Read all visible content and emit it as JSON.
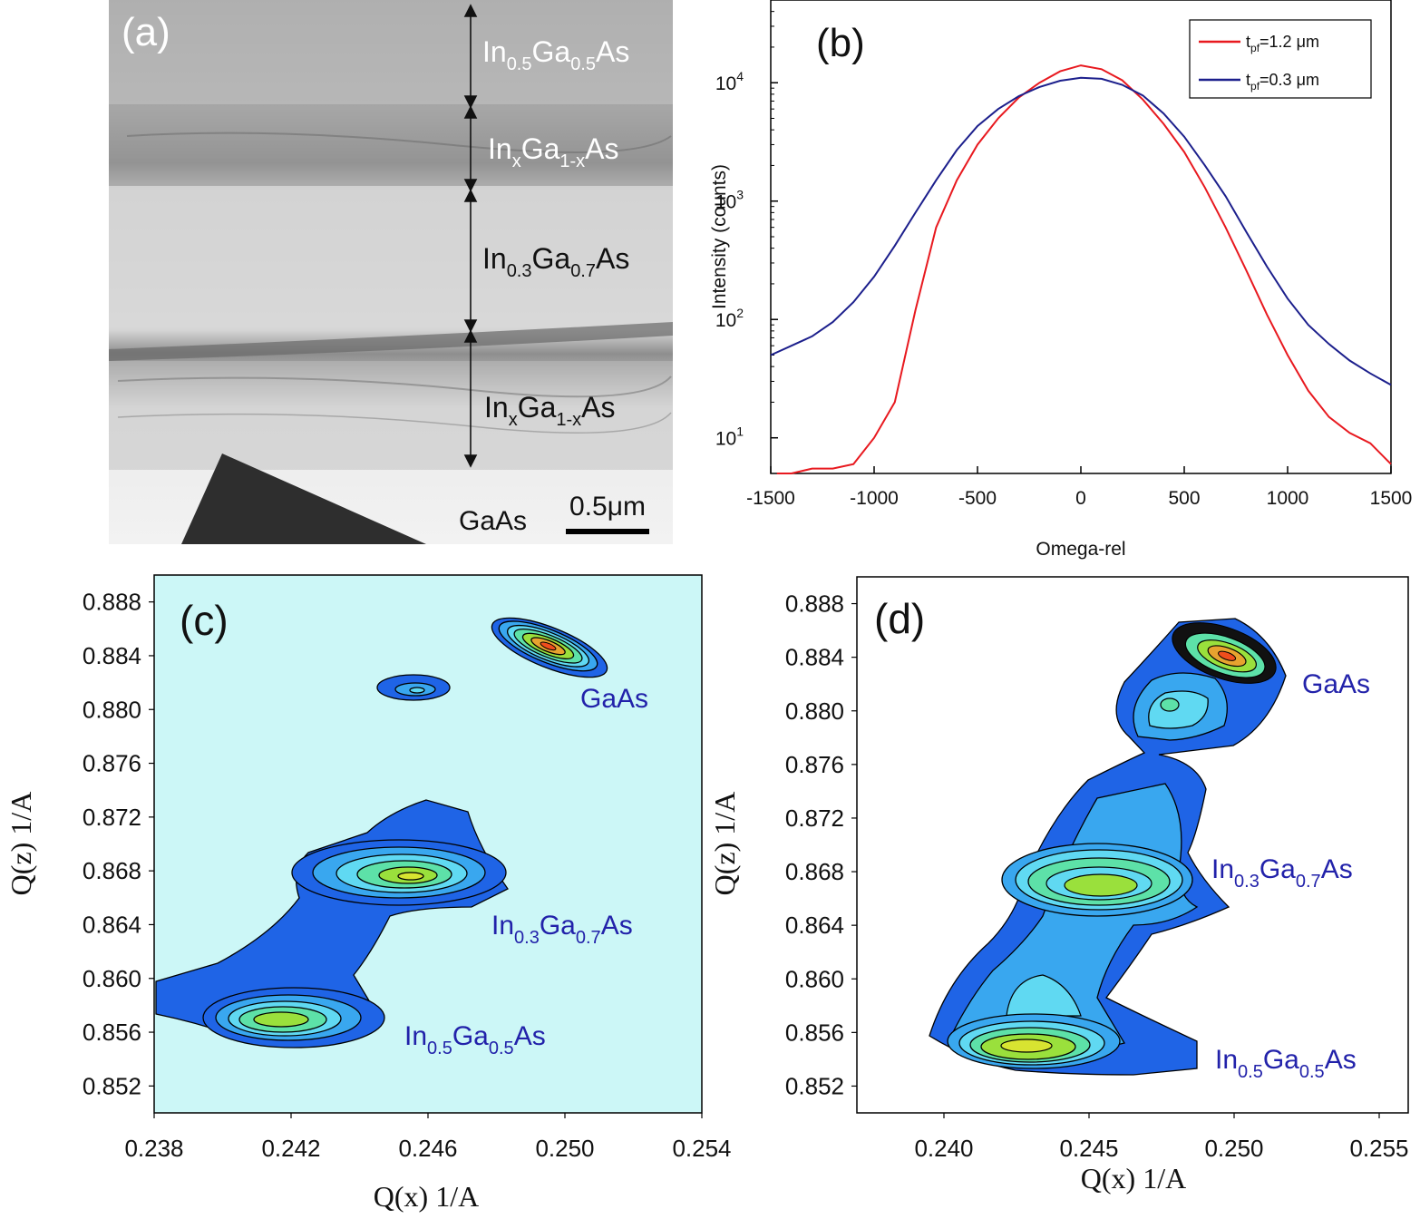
{
  "panels": {
    "a": {
      "label": "(a)",
      "layers": [
        {
          "base": "In",
          "sub1": "0.5",
          "mid": "Ga",
          "sub2": "0.5",
          "end": "As"
        },
        {
          "base": "In",
          "sub1": "x",
          "mid": "Ga",
          "sub2": "1-x",
          "end": "As"
        },
        {
          "base": "In",
          "sub1": "0.3",
          "mid": "Ga",
          "sub2": "0.7",
          "end": "As"
        },
        {
          "base": "In",
          "sub1": "x",
          "mid": "Ga",
          "sub2": "1-x",
          "end": "As"
        }
      ],
      "substrate": "GaAs",
      "scalebar": "0.5μm"
    },
    "b": {
      "label": "(b)",
      "legend": [
        {
          "pre": "t",
          "sub": "pf",
          "post": "=1.2 μm",
          "color": "#e8191f"
        },
        {
          "pre": "t",
          "sub": "pf",
          "post": "=0.3 μm",
          "color": "#1c1f8c"
        }
      ]
    },
    "c": {
      "label": "(c)"
    },
    "d": {
      "label": "(d)"
    }
  },
  "chart_data": [
    {
      "type": "line",
      "panel": "b",
      "xlabel": "Omega-rel",
      "ylabel": "Intensity (counts)",
      "yscale": "log",
      "xlim": [
        -1500,
        1500
      ],
      "ylim": [
        5,
        50000
      ],
      "xticks": [
        "-1500",
        "-1000",
        "-500",
        "0",
        "500",
        "1000",
        "1500"
      ],
      "yticks": [
        {
          "base": "10",
          "exp": "1"
        },
        {
          "base": "10",
          "exp": "2"
        },
        {
          "base": "10",
          "exp": "3"
        },
        {
          "base": "10",
          "exp": "4"
        }
      ],
      "series": [
        {
          "name": "tpf=1.2 μm",
          "x": [
            -1470,
            -1400,
            -1300,
            -1200,
            -1100,
            -1000,
            -900,
            -800,
            -700,
            -600,
            -500,
            -400,
            -300,
            -200,
            -100,
            0,
            100,
            200,
            300,
            400,
            500,
            600,
            700,
            800,
            900,
            1000,
            1100,
            1200,
            1300,
            1400,
            1500
          ],
          "y": [
            5,
            5,
            5.5,
            5.5,
            6,
            10,
            20,
            120,
            600,
            1500,
            3000,
            5000,
            7500,
            10000,
            12500,
            14000,
            13000,
            10500,
            7200,
            4500,
            2600,
            1300,
            600,
            260,
            110,
            50,
            25,
            15,
            11,
            9,
            6
          ]
        },
        {
          "name": "tpf=0.3 μm",
          "x": [
            -1500,
            -1400,
            -1300,
            -1200,
            -1100,
            -1000,
            -900,
            -800,
            -700,
            -600,
            -500,
            -400,
            -300,
            -200,
            -100,
            0,
            100,
            200,
            300,
            400,
            500,
            600,
            700,
            800,
            900,
            1000,
            1100,
            1200,
            1300,
            1400,
            1500
          ],
          "y": [
            50,
            60,
            72,
            95,
            140,
            230,
            420,
            800,
            1500,
            2700,
            4300,
            6000,
            7700,
            9200,
            10400,
            11000,
            10800,
            9600,
            7800,
            5500,
            3500,
            2000,
            1100,
            550,
            280,
            150,
            90,
            62,
            45,
            35,
            28
          ]
        }
      ]
    },
    {
      "type": "heatmap",
      "panel": "c",
      "xlabel": "Q(x) 1/A",
      "ylabel": "Q(z) 1/A",
      "xlim": [
        0.238,
        0.254
      ],
      "ylim": [
        0.85,
        0.89
      ],
      "xticks": [
        "0.238",
        "0.242",
        "0.246",
        "0.250",
        "0.254"
      ],
      "yticks": [
        "0.852",
        "0.856",
        "0.860",
        "0.864",
        "0.868",
        "0.872",
        "0.876",
        "0.880",
        "0.884",
        "0.888"
      ],
      "peaks": [
        {
          "label": {
            "pre": "",
            "s1": "",
            "mid": "GaAs",
            "s2": "",
            "post": ""
          },
          "qx": 0.2502,
          "qz": 0.8843
        },
        {
          "label": {
            "pre": "In",
            "s1": "0.3",
            "mid": "Ga",
            "s2": "0.7",
            "post": "As"
          },
          "qx": 0.2458,
          "qz": 0.8671
        },
        {
          "label": {
            "pre": "In",
            "s1": "0.5",
            "mid": "Ga",
            "s2": "0.5",
            "post": "As"
          },
          "qx": 0.2418,
          "qz": 0.8561
        },
        {
          "label": null,
          "qx": 0.246,
          "qz": 0.8812
        }
      ]
    },
    {
      "type": "heatmap",
      "panel": "d",
      "xlabel": "Q(x) 1/A",
      "ylabel": "Q(z) 1/A",
      "xlim": [
        0.237,
        0.256
      ],
      "ylim": [
        0.85,
        0.89
      ],
      "xticks": [
        "0.240",
        "0.245",
        "0.250",
        "0.255"
      ],
      "yticks": [
        "0.852",
        "0.856",
        "0.860",
        "0.864",
        "0.868",
        "0.872",
        "0.876",
        "0.880",
        "0.884",
        "0.888"
      ],
      "peaks": [
        {
          "label": {
            "pre": "",
            "s1": "",
            "mid": "GaAs",
            "s2": "",
            "post": ""
          },
          "qx": 0.2506,
          "qz": 0.884
        },
        {
          "label": {
            "pre": "In",
            "s1": "0.3",
            "mid": "Ga",
            "s2": "0.7",
            "post": "As"
          },
          "qx": 0.2455,
          "qz": 0.8675
        },
        {
          "label": {
            "pre": "In",
            "s1": "0.5",
            "mid": "Ga",
            "s2": "0.5",
            "post": "As"
          },
          "qx": 0.2432,
          "qz": 0.856
        }
      ]
    }
  ]
}
